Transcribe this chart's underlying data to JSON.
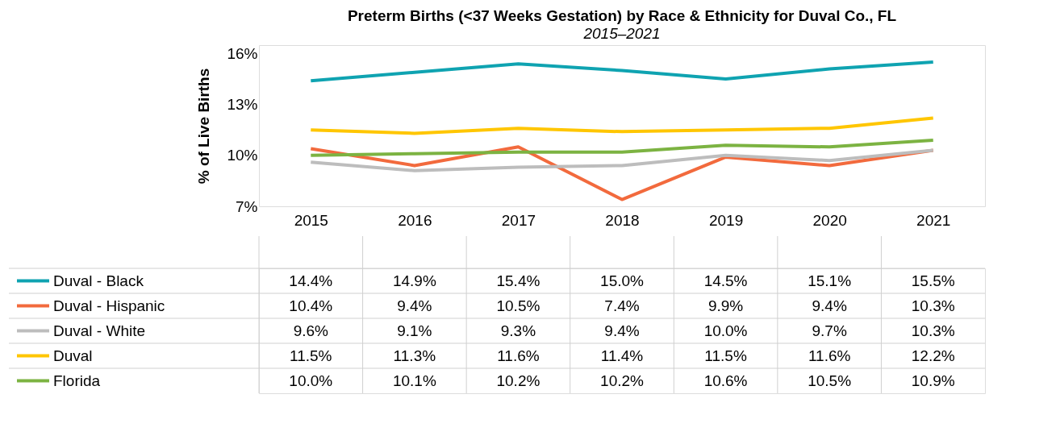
{
  "chart_data": {
    "type": "line",
    "title": "Preterm Births (<37 Weeks Gestation) by Race & Ethnicity for Duval Co., FL",
    "subtitle": "2015–2021",
    "ylabel": "% of Live Births",
    "categories": [
      "2015",
      "2016",
      "2017",
      "2018",
      "2019",
      "2020",
      "2021"
    ],
    "series": [
      {
        "name": "Duval - Black",
        "color": "#0fa3b1",
        "values": [
          14.4,
          14.9,
          15.4,
          15.0,
          14.5,
          15.1,
          15.5
        ],
        "value_labels": [
          "14.4%",
          "14.9%",
          "15.4%",
          "15.0%",
          "14.5%",
          "15.1%",
          "15.5%"
        ]
      },
      {
        "name": "Duval - Hispanic",
        "color": "#f26a3d",
        "values": [
          10.4,
          9.4,
          10.5,
          7.4,
          9.9,
          9.4,
          10.3
        ],
        "value_labels": [
          "10.4%",
          "9.4%",
          "10.5%",
          "7.4%",
          "9.9%",
          "9.4%",
          "10.3%"
        ]
      },
      {
        "name": "Duval - White",
        "color": "#bdbdbd",
        "values": [
          9.6,
          9.1,
          9.3,
          9.4,
          10.0,
          9.7,
          10.3
        ],
        "value_labels": [
          "9.6%",
          "9.1%",
          "9.3%",
          "9.4%",
          "10.0%",
          "9.7%",
          "10.3%"
        ]
      },
      {
        "name": "Duval",
        "color": "#ffc600",
        "values": [
          11.5,
          11.3,
          11.6,
          11.4,
          11.5,
          11.6,
          12.2
        ],
        "value_labels": [
          "11.5%",
          "11.3%",
          "11.6%",
          "11.4%",
          "11.5%",
          "11.6%",
          "12.2%"
        ]
      },
      {
        "name": "Florida",
        "color": "#7cb342",
        "values": [
          10.0,
          10.1,
          10.2,
          10.2,
          10.6,
          10.5,
          10.9
        ],
        "value_labels": [
          "10.0%",
          "10.1%",
          "10.2%",
          "10.2%",
          "10.6%",
          "10.5%",
          "10.9%"
        ]
      }
    ],
    "ylim": [
      7,
      16.5
    ],
    "yticks": [
      {
        "value": 7,
        "label": "7%"
      },
      {
        "value": 10,
        "label": "10%"
      },
      {
        "value": 13,
        "label": "13%"
      },
      {
        "value": 16,
        "label": "16%"
      }
    ],
    "grid": false,
    "legend": "bottom",
    "marker": "none",
    "line_style": "solid"
  }
}
